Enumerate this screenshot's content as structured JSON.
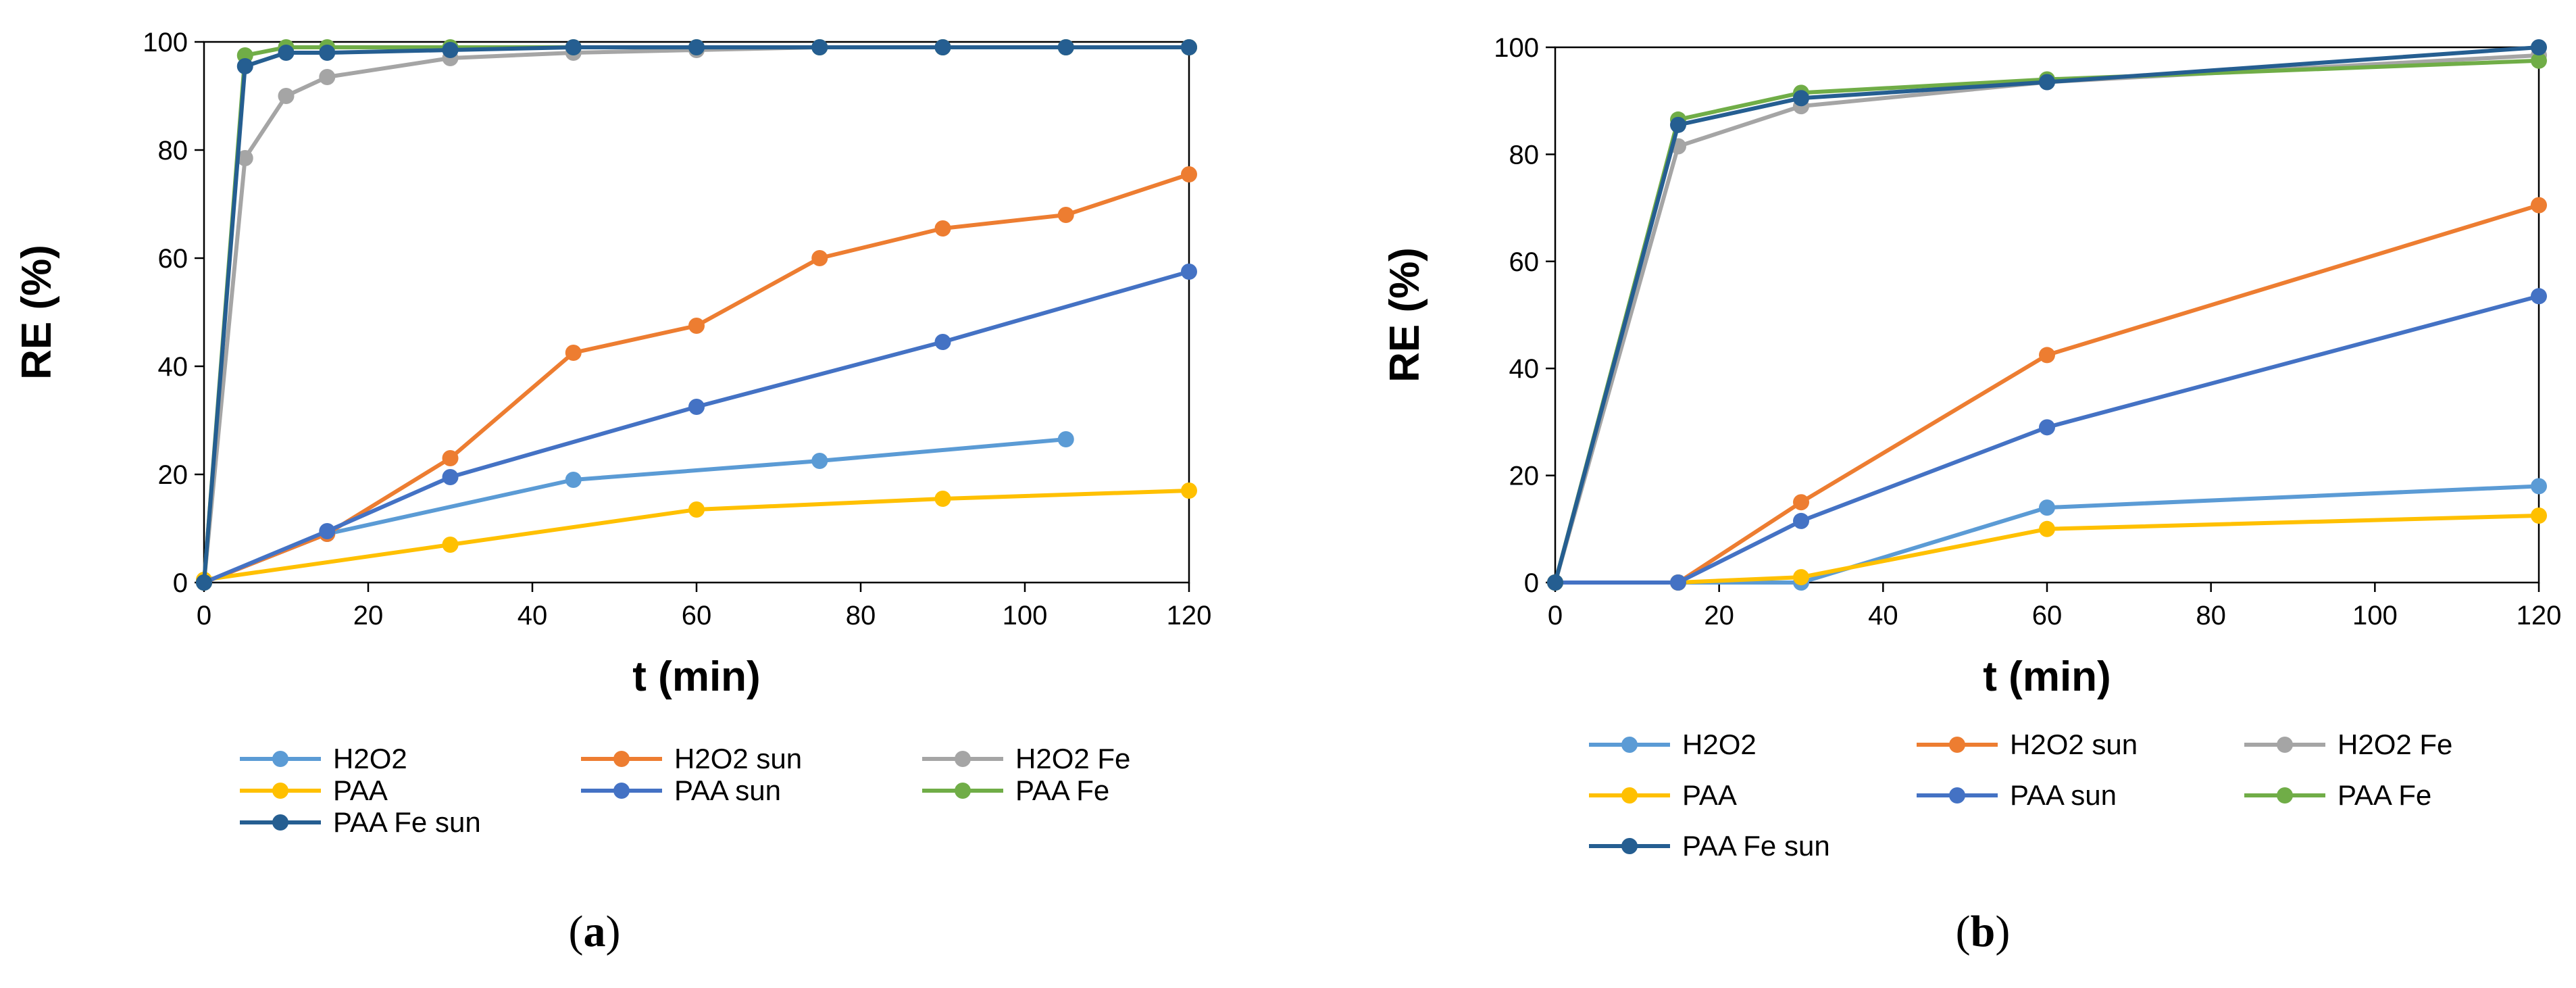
{
  "colors": {
    "H2O2": "#5b9bd5",
    "H2O2 sun": "#ed7d31",
    "H2O2 Fe": "#a5a5a5",
    "PAA": "#ffc000",
    "PAA sun": "#4472c4",
    "PAA Fe": "#70ad47",
    "PAA Fe sun": "#255e91"
  },
  "chart_data": [
    {
      "type": "line",
      "caption_pre": "(",
      "caption_letter": "a",
      "caption_post": ")",
      "xlabel": "t (min)",
      "ylabel": "RE (%)",
      "xlim": [
        0,
        120
      ],
      "ylim": [
        0,
        100
      ],
      "xticks": [
        "0",
        "20",
        "40",
        "60",
        "80",
        "100",
        "120"
      ],
      "yticks": [
        "0",
        "20",
        "40",
        "60",
        "80",
        "100"
      ],
      "grid": false,
      "legend_position": "bottom",
      "series": [
        {
          "name": "H2O2",
          "x": [
            0,
            15,
            45,
            75,
            105
          ],
          "y": [
            0,
            9,
            19,
            22.5,
            26.5
          ]
        },
        {
          "name": "H2O2 sun",
          "x": [
            0,
            15,
            30,
            45,
            60,
            75,
            90,
            105,
            120
          ],
          "y": [
            0,
            9,
            23,
            42.5,
            47.5,
            60,
            65.5,
            68,
            75.5
          ]
        },
        {
          "name": "H2O2 Fe",
          "x": [
            0,
            5,
            10,
            15,
            30,
            45,
            60,
            75,
            90,
            105,
            120
          ],
          "y": [
            0,
            78.5,
            90,
            93.5,
            97,
            98,
            98.5,
            99,
            99,
            99,
            99
          ]
        },
        {
          "name": "PAA",
          "x": [
            0,
            30,
            60,
            90,
            120
          ],
          "y": [
            0.5,
            7,
            13.5,
            15.5,
            17
          ]
        },
        {
          "name": "PAA sun",
          "x": [
            0,
            15,
            30,
            60,
            90,
            120
          ],
          "y": [
            0,
            9.5,
            19.5,
            32.5,
            44.5,
            57.5
          ]
        },
        {
          "name": "PAA Fe",
          "x": [
            0,
            5,
            10,
            15,
            30,
            45,
            60,
            75,
            90,
            105,
            120
          ],
          "y": [
            0,
            97.5,
            99,
            99,
            99,
            99,
            99,
            99,
            99,
            99,
            99
          ]
        },
        {
          "name": "PAA Fe sun",
          "x": [
            0,
            5,
            10,
            15,
            30,
            45,
            60,
            75,
            90,
            105,
            120
          ],
          "y": [
            0,
            95.5,
            98,
            98,
            98.5,
            99,
            99,
            99,
            99,
            99,
            99
          ]
        }
      ]
    },
    {
      "type": "line",
      "caption_pre": "(",
      "caption_letter": "b",
      "caption_post": ")",
      "xlabel": "t (min)",
      "ylabel": "RE (%)",
      "xlim": [
        0,
        120
      ],
      "ylim": [
        0,
        100
      ],
      "xticks": [
        "0",
        "20",
        "40",
        "60",
        "80",
        "100",
        "120"
      ],
      "yticks": [
        "0",
        "20",
        "40",
        "60",
        "80",
        "100"
      ],
      "grid": false,
      "legend_position": "bottom",
      "series": [
        {
          "name": "H2O2",
          "x": [
            0,
            15,
            30,
            60,
            120
          ],
          "y": [
            0,
            0,
            0,
            14,
            18
          ]
        },
        {
          "name": "H2O2 sun",
          "x": [
            0,
            15,
            30,
            60,
            120
          ],
          "y": [
            0,
            0,
            15,
            42.5,
            70.5
          ]
        },
        {
          "name": "H2O2 Fe",
          "x": [
            0,
            15,
            30,
            60,
            120
          ],
          "y": [
            0,
            81.5,
            89,
            93.5,
            98.5
          ]
        },
        {
          "name": "PAA",
          "x": [
            0,
            15,
            30,
            60,
            120
          ],
          "y": [
            0,
            0,
            1,
            10,
            12.5
          ]
        },
        {
          "name": "PAA sun",
          "x": [
            0,
            15,
            30,
            60,
            120
          ],
          "y": [
            0,
            0,
            11.5,
            29,
            53.5
          ]
        },
        {
          "name": "PAA Fe",
          "x": [
            0,
            15,
            30,
            60,
            120
          ],
          "y": [
            0,
            86.5,
            91.5,
            94,
            97.5
          ]
        },
        {
          "name": "PAA Fe sun",
          "x": [
            0,
            15,
            30,
            60,
            120
          ],
          "y": [
            0,
            85.5,
            90.5,
            93.5,
            100
          ]
        }
      ]
    }
  ]
}
